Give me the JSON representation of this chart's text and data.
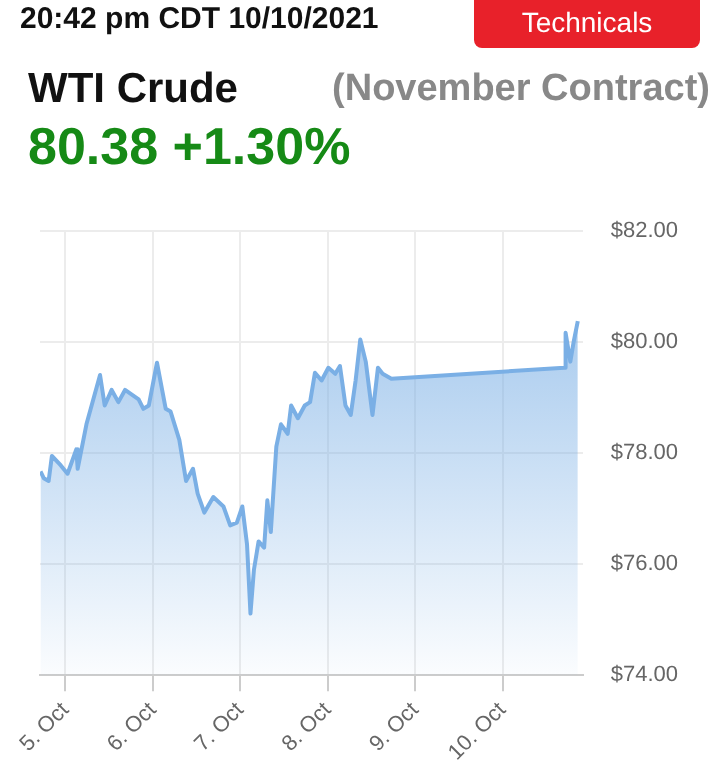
{
  "chart_data": {
    "type": "area",
    "title": "WTI Crude",
    "subtitle": "(November Contract)",
    "annotations": [
      "20:42 pm CDT 10/10/2021",
      "Technicals",
      "80.38 +1.30%"
    ],
    "x": [
      "2021-10-04T17:08",
      "2021-10-04T18:02",
      "2021-10-04T19:22",
      "2021-10-04T20:16",
      "2021-10-04T22:43",
      "2021-10-05T00:34",
      "2021-10-05T02:58",
      "2021-10-05T03:21",
      "2021-10-05T05:45",
      "2021-10-05T09:29",
      "2021-10-05T10:46",
      "2021-10-05T12:40",
      "2021-10-05T14:31",
      "2021-10-05T16:21",
      "2021-10-05T20:05",
      "2021-10-05T21:23",
      "2021-10-05T22:53",
      "2021-10-06T01:07",
      "2021-10-06T03:31",
      "2021-10-06T04:51",
      "2021-10-06T07:15",
      "2021-10-06T09:06",
      "2021-10-06T11:00",
      "2021-10-06T12:17",
      "2021-10-06T14:07",
      "2021-10-06T16:35",
      "2021-10-06T19:22",
      "2021-10-06T21:13",
      "2021-10-06T23:03",
      "2021-10-07T00:33",
      "2021-10-07T01:50",
      "2021-10-07T02:47",
      "2021-10-07T03:44",
      "2021-10-07T05:01",
      "2021-10-07T06:32",
      "2021-10-07T07:25",
      "2021-10-07T08:22",
      "2021-10-07T09:53",
      "2021-10-07T11:09",
      "2021-10-07T13:00",
      "2021-10-07T13:57",
      "2021-10-07T15:48",
      "2021-10-07T17:41",
      "2021-10-07T19:09",
      "2021-10-07T20:29",
      "2021-10-07T22:19",
      "2021-10-08T00:10",
      "2021-10-08T02:04",
      "2021-10-08T03:21",
      "2021-10-08T04:52",
      "2021-10-08T06:19",
      "2021-10-08T07:39",
      "2021-10-08T08:56",
      "2021-10-08T10:26",
      "2021-10-08T12:17",
      "2021-10-08T13:47",
      "2021-10-08T15:04",
      "2021-10-08T17:28",
      "2021-10-10T16:54",
      "2021-10-10T17:18",
      "2021-10-10T18:36",
      "2021-10-10T19:30",
      "2021-10-10T20:39"
    ],
    "series": [
      {
        "color": "#7aafe5",
        "values": [
          77.67,
          77.55,
          77.5,
          77.95,
          77.78,
          77.63,
          78.07,
          77.72,
          78.52,
          79.41,
          78.86,
          79.14,
          78.92,
          79.14,
          78.97,
          78.8,
          78.86,
          79.63,
          78.8,
          78.75,
          78.24,
          77.5,
          77.72,
          77.27,
          76.93,
          77.21,
          77.04,
          76.7,
          76.75,
          77.04,
          76.36,
          75.11,
          75.9,
          76.41,
          76.3,
          77.15,
          76.58,
          78.12,
          78.52,
          78.35,
          78.86,
          78.63,
          78.86,
          78.92,
          79.45,
          79.31,
          79.54,
          79.43,
          79.57,
          78.86,
          78.69,
          79.31,
          80.05,
          79.65,
          78.69,
          79.54,
          79.43,
          79.34,
          79.54,
          80.17,
          79.65,
          80.0,
          80.38
        ]
      }
    ],
    "xlim": [
      "2021-10-04T17:00",
      "2021-10-10T22:00"
    ],
    "xticks": [
      {
        "value": "2021-10-05",
        "label": "5. Oct"
      },
      {
        "value": "2021-10-06",
        "label": "6. Oct"
      },
      {
        "value": "2021-10-07",
        "label": "7. Oct"
      },
      {
        "value": "2021-10-08",
        "label": "8. Oct"
      },
      {
        "value": "2021-10-09",
        "label": "9. Oct"
      },
      {
        "value": "2021-10-10",
        "label": "10. Oct"
      }
    ],
    "ylim": [
      74,
      82
    ],
    "yticks": [
      {
        "value": 74,
        "label": "$74.00"
      },
      {
        "value": 76,
        "label": "$76.00"
      },
      {
        "value": 78,
        "label": "$78.00"
      },
      {
        "value": 80,
        "label": "$80.00"
      },
      {
        "value": 82,
        "label": "$82.00"
      }
    ],
    "grid": true,
    "legend": false,
    "marker": "none",
    "line_style": "solid"
  }
}
